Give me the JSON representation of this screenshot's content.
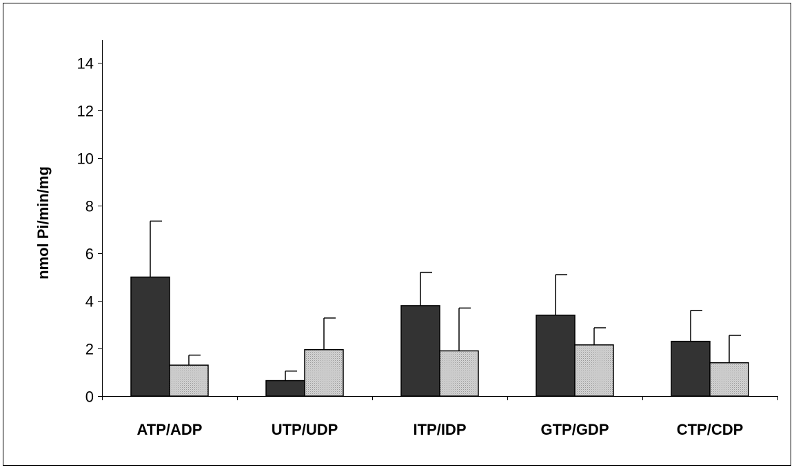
{
  "chart_data": {
    "type": "bar",
    "title": "",
    "xlabel": "",
    "ylabel": "nmol Pi/min/mg",
    "ylim": [
      0,
      15
    ],
    "yticks": [
      "0",
      "2",
      "4",
      "6",
      "8",
      "10",
      "12",
      "14"
    ],
    "categories": [
      "ATP/ADP",
      "UTP/UDP",
      "ITP/IDP",
      "GTP/GDP",
      "CTP/CDP"
    ],
    "grid": false,
    "legend": "none",
    "series": [
      {
        "color": "#333333",
        "values": [
          5.0,
          0.65,
          3.8,
          3.4,
          2.3
        ],
        "error": [
          2.35,
          0.4,
          1.4,
          1.7,
          1.3
        ]
      },
      {
        "color": "#c8c8c8",
        "pattern": "dotted-gray",
        "values": [
          1.3,
          1.95,
          1.9,
          2.15,
          1.4
        ],
        "error": [
          0.42,
          1.33,
          1.8,
          0.72,
          1.15
        ]
      }
    ]
  }
}
